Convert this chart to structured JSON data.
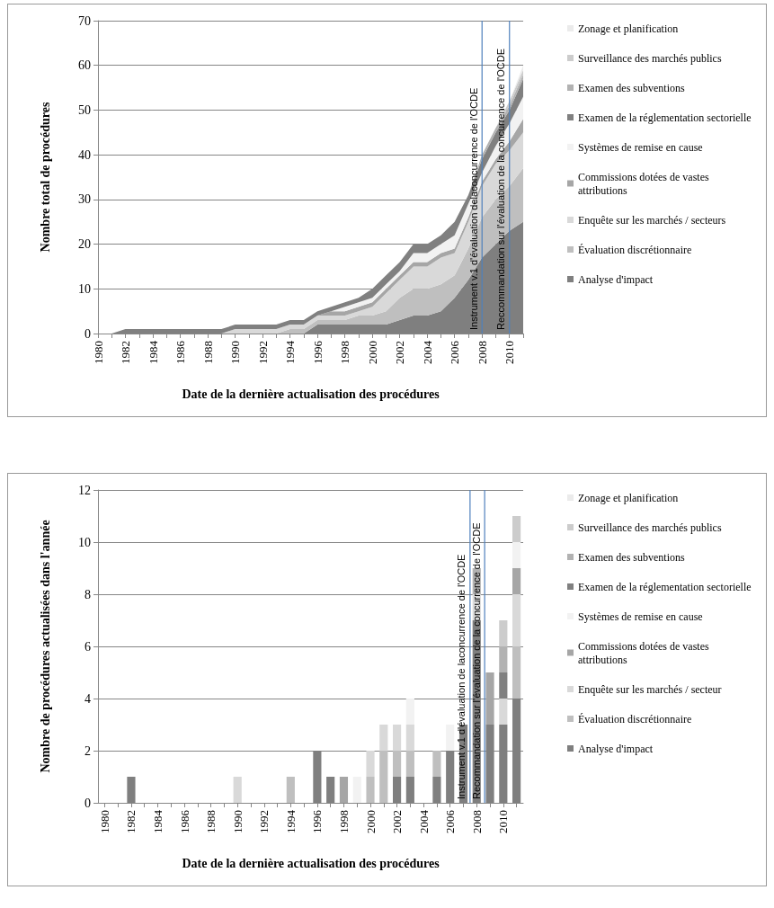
{
  "chart_data": [
    {
      "type": "area",
      "stacked": true,
      "ylabel": "Nombre total de procédures",
      "xlabel": "Date de la dernière actualisation des procédures",
      "grid": "y",
      "legend": "right",
      "x": [
        1980,
        1981,
        1982,
        1983,
        1984,
        1985,
        1986,
        1987,
        1988,
        1989,
        1990,
        1991,
        1992,
        1993,
        1994,
        1995,
        1996,
        1997,
        1998,
        1999,
        2000,
        2001,
        2002,
        2003,
        2004,
        2005,
        2006,
        2007,
        2008,
        2009,
        2010,
        2011
      ],
      "xlim": [
        1980,
        2011
      ],
      "xticks": [
        1980,
        {
          "value": 1981,
          "label": null
        },
        1982,
        {
          "value": 1983,
          "label": null
        },
        1984,
        {
          "value": 1985,
          "label": null
        },
        1986,
        {
          "value": 1987,
          "label": null
        },
        1988,
        {
          "value": 1989,
          "label": null
        },
        1990,
        {
          "value": 1991,
          "label": null
        },
        1992,
        {
          "value": 1993,
          "label": null
        },
        1994,
        {
          "value": 1995,
          "label": null
        },
        1996,
        {
          "value": 1997,
          "label": null
        },
        1998,
        {
          "value": 1999,
          "label": null
        },
        2000,
        {
          "value": 2001,
          "label": null
        },
        2002,
        {
          "value": 2003,
          "label": null
        },
        2004,
        {
          "value": 2005,
          "label": null
        },
        2006,
        {
          "value": 2007,
          "label": null
        },
        2008,
        {
          "value": 2009,
          "label": null
        },
        2010,
        {
          "value": 2011,
          "label": null
        }
      ],
      "ylim": [
        0,
        70
      ],
      "yticks": [
        0,
        10,
        20,
        30,
        40,
        50,
        60,
        70
      ],
      "ref_lines": [
        {
          "axis": "x",
          "value": 2008,
          "label": "Instrument v.1 d'évaluation delaconcurrence de l'OCDE",
          "color": "#4f81bd"
        },
        {
          "axis": "x",
          "value": 2010,
          "label": "Reccommandation sur l'évaluation de la concurrence de l'OCDE",
          "color": "#4f81bd"
        }
      ],
      "series": [
        {
          "name": "Analyse d'impact",
          "color": "#7f7f7f",
          "values": [
            0,
            0,
            0,
            0,
            0,
            0,
            0,
            0,
            0,
            0,
            0,
            0,
            0,
            0,
            0,
            0,
            2,
            2,
            2,
            2,
            2,
            2,
            3,
            4,
            4,
            5,
            8,
            12,
            17,
            20,
            23,
            25
          ]
        },
        {
          "name": "Évaluation discrétionnaire",
          "color": "#bfbfbf",
          "values": [
            0,
            0,
            0,
            0,
            0,
            0,
            0,
            0,
            0,
            0,
            0,
            0,
            0,
            0,
            1,
            1,
            1,
            1,
            1,
            2,
            2,
            3,
            5,
            6,
            6,
            6,
            5,
            7,
            9,
            10,
            10,
            12
          ]
        },
        {
          "name": "Enquête sur les marchés / secteurs",
          "color": "#d9d9d9",
          "values": [
            0,
            0,
            0,
            0,
            0,
            0,
            0,
            0,
            0,
            0,
            1,
            1,
            1,
            1,
            1,
            1,
            1,
            1,
            1,
            1,
            2,
            4,
            4,
            5,
            5,
            6,
            5,
            6,
            7,
            8,
            8,
            8
          ]
        },
        {
          "name": "Commissions dotées de vastes attributions",
          "color": "#a6a6a6",
          "values": [
            0,
            0,
            0,
            0,
            0,
            0,
            0,
            0,
            0,
            0,
            0,
            0,
            0,
            0,
            0,
            0,
            0,
            1,
            1,
            1,
            1,
            1,
            1,
            1,
            1,
            1,
            1,
            1,
            1,
            1,
            2,
            3
          ]
        },
        {
          "name": "Systèmes de remise en cause",
          "color": "#f2f2f2",
          "values": [
            0,
            0,
            0,
            0,
            0,
            0,
            0,
            0,
            0,
            0,
            0,
            0,
            0,
            0,
            0,
            0,
            0,
            0,
            1,
            1,
            1,
            1,
            1,
            2,
            2,
            2,
            3,
            3,
            2,
            3,
            4,
            5
          ]
        },
        {
          "name": "Examen de la réglementation sectorielle",
          "color": "#808080",
          "values": [
            0,
            0,
            1,
            1,
            1,
            1,
            1,
            1,
            1,
            1,
            1,
            1,
            1,
            1,
            1,
            1,
            1,
            1,
            1,
            1,
            2,
            2,
            2,
            2,
            2,
            2,
            3,
            2,
            3,
            3,
            3,
            4
          ]
        },
        {
          "name": "Examen des subventions",
          "color": "#b2b2b2",
          "values": [
            0,
            0,
            0,
            0,
            0,
            0,
            0,
            0,
            0,
            0,
            0,
            0,
            0,
            0,
            0,
            0,
            0,
            0,
            0,
            0,
            0,
            0,
            0,
            0,
            0,
            0,
            0,
            0,
            1,
            1,
            1,
            1
          ]
        },
        {
          "name": "Surveillance des marchés publics",
          "color": "#cccccc",
          "values": [
            0,
            0,
            0,
            0,
            0,
            0,
            0,
            0,
            0,
            0,
            0,
            0,
            0,
            0,
            0,
            0,
            0,
            0,
            0,
            0,
            0,
            0,
            0,
            0,
            0,
            0,
            0,
            0,
            0,
            0,
            1,
            1
          ]
        },
        {
          "name": "Zonage et planification",
          "color": "#ebebeb",
          "values": [
            0,
            0,
            0,
            0,
            0,
            0,
            0,
            0,
            0,
            0,
            0,
            0,
            0,
            0,
            0,
            0,
            0,
            0,
            0,
            0,
            0,
            0,
            0,
            0,
            0,
            0,
            0,
            0,
            0,
            0,
            0,
            1
          ]
        }
      ]
    },
    {
      "type": "bar",
      "stacked": true,
      "ylabel": "Nombre de procédures actualisées dans l'année",
      "xlabel": "Date de la dernière actualisation des procédures",
      "grid": "y",
      "legend": "right",
      "x": [
        1980,
        1981,
        1982,
        1983,
        1984,
        1985,
        1986,
        1987,
        1988,
        1989,
        1990,
        1991,
        1992,
        1993,
        1994,
        1995,
        1996,
        1997,
        1998,
        1999,
        2000,
        2001,
        2002,
        2003,
        2004,
        2005,
        2006,
        2007,
        2008,
        2009,
        2010,
        2011
      ],
      "xlim": [
        1979.5,
        2011.5
      ],
      "xticks": [
        1980,
        {
          "value": 1981,
          "label": null
        },
        1982,
        {
          "value": 1983,
          "label": null
        },
        1984,
        {
          "value": 1985,
          "label": null
        },
        1986,
        {
          "value": 1987,
          "label": null
        },
        1988,
        {
          "value": 1989,
          "label": null
        },
        1990,
        {
          "value": 1991,
          "label": null
        },
        1992,
        {
          "value": 1993,
          "label": null
        },
        1994,
        {
          "value": 1995,
          "label": null
        },
        1996,
        {
          "value": 1997,
          "label": null
        },
        1998,
        {
          "value": 1999,
          "label": null
        },
        2000,
        {
          "value": 2001,
          "label": null
        },
        2002,
        {
          "value": 2003,
          "label": null
        },
        2004,
        {
          "value": 2005,
          "label": null
        },
        2006,
        {
          "value": 2007,
          "label": null
        },
        2008,
        {
          "value": 2009,
          "label": null
        },
        2010,
        {
          "value": 2011,
          "label": null
        }
      ],
      "ylim": [
        0,
        12
      ],
      "yticks": [
        0,
        2,
        4,
        6,
        8,
        10,
        12
      ],
      "ref_lines": [
        {
          "axis": "x",
          "value": 2007.5,
          "label": "Instrument v.1 d'évaluation de laconcurrence de l'OCDE",
          "color": "#4f81bd"
        },
        {
          "axis": "x",
          "value": 2008.6,
          "label": "Recommandation sur l'évaluation de la concurrence de l'OCDE",
          "color": "#4f81bd"
        }
      ],
      "series": [
        {
          "name": "Analyse d'impact",
          "color": "#7f7f7f",
          "values": [
            0,
            0,
            1,
            0,
            0,
            0,
            0,
            0,
            0,
            0,
            0,
            0,
            0,
            0,
            0,
            0,
            2,
            1,
            0,
            0,
            0,
            0,
            1,
            1,
            0,
            1,
            2,
            3,
            7,
            3,
            3,
            4
          ]
        },
        {
          "name": "Évaluation discrétionnaire",
          "color": "#bfbfbf",
          "values": [
            0,
            0,
            0,
            0,
            0,
            0,
            0,
            0,
            0,
            0,
            0,
            0,
            0,
            0,
            1,
            0,
            0,
            0,
            0,
            0,
            1,
            2,
            1,
            1,
            0,
            1,
            0,
            0,
            0,
            0,
            0,
            2
          ]
        },
        {
          "name": "Enquête sur les marchés / secteur",
          "color": "#d9d9d9",
          "values": [
            0,
            0,
            0,
            0,
            0,
            0,
            0,
            0,
            0,
            0,
            1,
            0,
            0,
            0,
            0,
            0,
            0,
            0,
            0,
            0,
            1,
            1,
            1,
            1,
            0,
            0,
            0,
            0,
            1,
            0,
            1,
            2
          ]
        },
        {
          "name": "Commissions dotées de vastes attributions",
          "color": "#a6a6a6",
          "values": [
            0,
            0,
            0,
            0,
            0,
            0,
            0,
            0,
            0,
            0,
            0,
            0,
            0,
            0,
            0,
            0,
            0,
            0,
            1,
            0,
            0,
            0,
            0,
            0,
            0,
            0,
            0,
            0,
            0,
            2,
            0,
            1
          ]
        },
        {
          "name": "Systèmes de remise en cause",
          "color": "#f2f2f2",
          "values": [
            0,
            0,
            0,
            0,
            0,
            0,
            0,
            0,
            0,
            0,
            0,
            0,
            0,
            0,
            0,
            0,
            0,
            0,
            0,
            1,
            0,
            0,
            0,
            1,
            0,
            0,
            1,
            0,
            0,
            0,
            0,
            1
          ]
        },
        {
          "name": "Examen de la réglementation sectorielle",
          "color": "#808080",
          "values": [
            0,
            0,
            0,
            0,
            0,
            0,
            0,
            0,
            0,
            0,
            0,
            0,
            0,
            0,
            0,
            0,
            0,
            0,
            0,
            0,
            0,
            0,
            0,
            0,
            0,
            0,
            0,
            0,
            0,
            0,
            1,
            0
          ]
        },
        {
          "name": "Examen des subventions",
          "color": "#b2b2b2",
          "values": [
            0,
            0,
            0,
            0,
            0,
            0,
            0,
            0,
            0,
            0,
            0,
            0,
            0,
            0,
            0,
            0,
            0,
            0,
            0,
            0,
            0,
            0,
            0,
            0,
            0,
            0,
            0,
            0,
            1,
            0,
            1,
            0
          ]
        },
        {
          "name": "Surveillance des marchés publics",
          "color": "#cccccc",
          "values": [
            0,
            0,
            0,
            0,
            0,
            0,
            0,
            0,
            0,
            0,
            0,
            0,
            0,
            0,
            0,
            0,
            0,
            0,
            0,
            0,
            0,
            0,
            0,
            0,
            0,
            0,
            0,
            0,
            0,
            0,
            1,
            1
          ]
        },
        {
          "name": "Zonage et planification",
          "color": "#ebebeb",
          "values": [
            0,
            0,
            0,
            0,
            0,
            0,
            0,
            0,
            0,
            0,
            0,
            0,
            0,
            0,
            0,
            0,
            0,
            0,
            0,
            0,
            0,
            0,
            0,
            0,
            0,
            0,
            0,
            0,
            0,
            0,
            0,
            0
          ]
        }
      ]
    }
  ]
}
